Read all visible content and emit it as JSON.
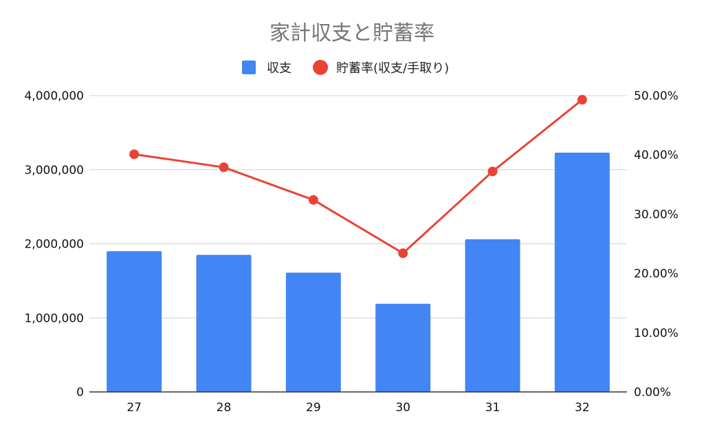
{
  "chart_data": {
    "type": "bar",
    "title": "家計収支と貯蓄率",
    "categories": [
      "27",
      "28",
      "29",
      "30",
      "31",
      "32"
    ],
    "series": [
      {
        "name": "収支",
        "type": "bar",
        "axis": "left",
        "color": "#4285F4",
        "values": [
          1900000,
          1850000,
          1610000,
          1190000,
          2060000,
          3230000
        ]
      },
      {
        "name": "貯蓄率(収支/手取り)",
        "type": "line",
        "axis": "right",
        "color": "#EA4335",
        "values": [
          40.1,
          37.9,
          32.4,
          23.4,
          37.2,
          49.3
        ]
      }
    ],
    "y_left": {
      "ylim": [
        0,
        4000000
      ],
      "ticks": [
        0,
        1000000,
        2000000,
        3000000,
        4000000
      ],
      "tick_labels": [
        "0",
        "1,000,000",
        "2,000,000",
        "3,000,000",
        "4,000,000"
      ]
    },
    "y_right": {
      "ylim": [
        0,
        50
      ],
      "ticks": [
        0,
        10,
        20,
        30,
        40,
        50
      ],
      "tick_labels": [
        "0.00%",
        "10.00%",
        "20.00%",
        "30.00%",
        "40.00%",
        "50.00%"
      ]
    },
    "grid": true,
    "legend_position": "top-center"
  }
}
